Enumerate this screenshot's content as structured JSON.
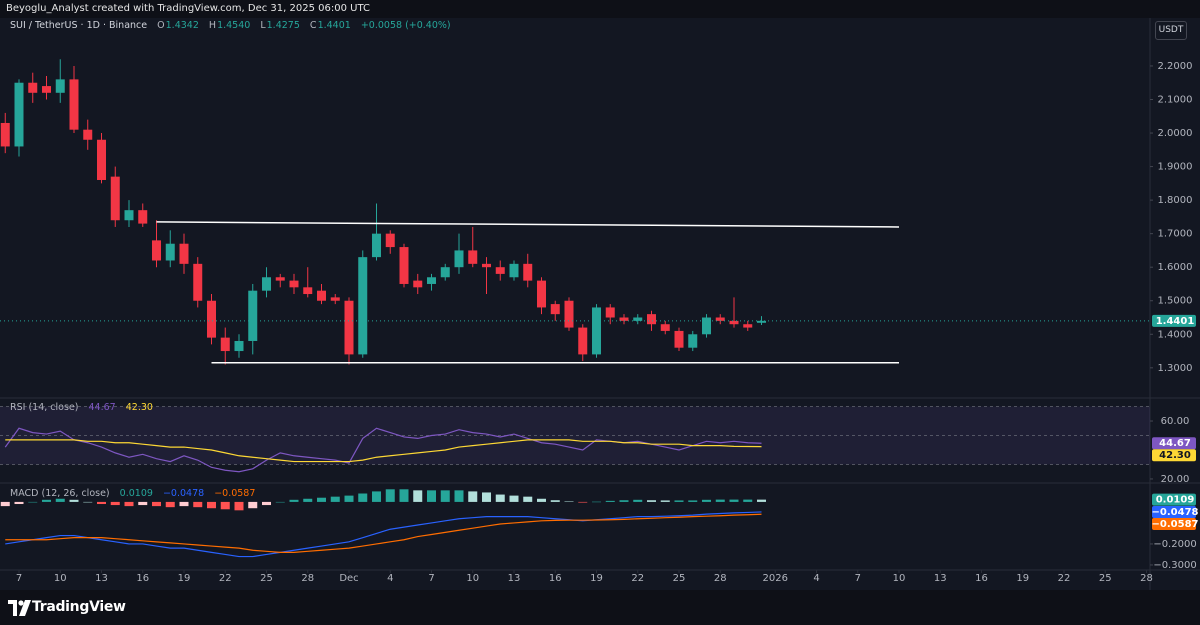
{
  "header": {
    "credit": "Beyoglu_Analyst created with TradingView.com, Dec 31, 2025 06:00 UTC",
    "symbol": "SUI / TetherUS · 1D · Binance",
    "ohlc_prefixes": [
      "O",
      "H",
      "L",
      "C"
    ],
    "change": "+0.0058 (+0.40%)",
    "currency": "USDT"
  },
  "brand": "TradingView",
  "chart_data": [
    {
      "type": "candlestick",
      "x": [
        "2025-11-06",
        "2025-11-07",
        "2025-11-08",
        "2025-11-09",
        "2025-11-10",
        "2025-11-11",
        "2025-11-12",
        "2025-11-13",
        "2025-11-14",
        "2025-11-15",
        "2025-11-16",
        "2025-11-17",
        "2025-11-18",
        "2025-11-19",
        "2025-11-20",
        "2025-11-21",
        "2025-11-22",
        "2025-11-23",
        "2025-11-24",
        "2025-11-25",
        "2025-11-26",
        "2025-11-27",
        "2025-11-28",
        "2025-11-29",
        "2025-11-30",
        "2025-12-01",
        "2025-12-02",
        "2025-12-03",
        "2025-12-04",
        "2025-12-05",
        "2025-12-06",
        "2025-12-07",
        "2025-12-08",
        "2025-12-09",
        "2025-12-10",
        "2025-12-11",
        "2025-12-12",
        "2025-12-13",
        "2025-12-14",
        "2025-12-15",
        "2025-12-16",
        "2025-12-17",
        "2025-12-18",
        "2025-12-19",
        "2025-12-20",
        "2025-12-21",
        "2025-12-22",
        "2025-12-23",
        "2025-12-24",
        "2025-12-25",
        "2025-12-26",
        "2025-12-27",
        "2025-12-28",
        "2025-12-29",
        "2025-12-30",
        "2025-12-31"
      ],
      "open": [
        2.03,
        1.96,
        2.15,
        2.14,
        2.12,
        2.16,
        2.01,
        1.98,
        1.87,
        1.74,
        1.77,
        1.68,
        1.62,
        1.67,
        1.61,
        1.5,
        1.39,
        1.35,
        1.38,
        1.53,
        1.57,
        1.56,
        1.54,
        1.53,
        1.51,
        1.5,
        1.34,
        1.63,
        1.7,
        1.66,
        1.56,
        1.55,
        1.57,
        1.6,
        1.65,
        1.61,
        1.6,
        1.57,
        1.61,
        1.56,
        1.49,
        1.5,
        1.42,
        1.34,
        1.48,
        1.45,
        1.44,
        1.46,
        1.43,
        1.41,
        1.36,
        1.4,
        1.45,
        1.44,
        1.43,
        1.4342
      ],
      "high": [
        2.06,
        2.16,
        2.18,
        2.17,
        2.22,
        2.2,
        2.04,
        2.0,
        1.9,
        1.8,
        1.79,
        1.74,
        1.71,
        1.7,
        1.63,
        1.52,
        1.42,
        1.4,
        1.55,
        1.6,
        1.58,
        1.58,
        1.6,
        1.55,
        1.52,
        1.51,
        1.65,
        1.79,
        1.71,
        1.67,
        1.58,
        1.58,
        1.61,
        1.7,
        1.72,
        1.63,
        1.62,
        1.62,
        1.64,
        1.57,
        1.5,
        1.51,
        1.43,
        1.49,
        1.49,
        1.46,
        1.46,
        1.47,
        1.44,
        1.42,
        1.41,
        1.46,
        1.46,
        1.51,
        1.44,
        1.454
      ],
      "low": [
        1.94,
        1.93,
        2.09,
        2.1,
        2.09,
        2.0,
        1.95,
        1.85,
        1.72,
        1.72,
        1.72,
        1.6,
        1.6,
        1.58,
        1.48,
        1.37,
        1.31,
        1.33,
        1.34,
        1.51,
        1.54,
        1.52,
        1.51,
        1.49,
        1.49,
        1.31,
        1.33,
        1.62,
        1.64,
        1.54,
        1.52,
        1.53,
        1.56,
        1.58,
        1.6,
        1.52,
        1.56,
        1.56,
        1.54,
        1.46,
        1.44,
        1.41,
        1.32,
        1.33,
        1.43,
        1.43,
        1.43,
        1.41,
        1.4,
        1.35,
        1.35,
        1.39,
        1.43,
        1.42,
        1.41,
        1.4275
      ],
      "close": [
        1.96,
        2.15,
        2.12,
        2.12,
        2.16,
        2.01,
        1.98,
        1.86,
        1.74,
        1.77,
        1.73,
        1.62,
        1.67,
        1.61,
        1.5,
        1.39,
        1.35,
        1.38,
        1.53,
        1.57,
        1.56,
        1.54,
        1.52,
        1.5,
        1.5,
        1.34,
        1.63,
        1.7,
        1.66,
        1.55,
        1.54,
        1.57,
        1.6,
        1.65,
        1.61,
        1.6,
        1.58,
        1.61,
        1.56,
        1.48,
        1.46,
        1.42,
        1.34,
        1.48,
        1.45,
        1.44,
        1.45,
        1.43,
        1.41,
        1.36,
        1.4,
        1.45,
        1.44,
        1.43,
        1.42,
        1.4401
      ],
      "ohlc_labels": [
        "1.4342",
        "1.4540",
        "1.4275",
        "1.4401"
      ],
      "up_color": "#26a69a",
      "down_color": "#f23645",
      "xlim": [
        "2025-11-05",
        "2026-01-29"
      ],
      "xticks": [
        {
          "value": "2025-11-07",
          "label": "7"
        },
        {
          "value": "2025-11-10",
          "label": "10"
        },
        {
          "value": "2025-11-13",
          "label": "13"
        },
        {
          "value": "2025-11-16",
          "label": "16"
        },
        {
          "value": "2025-11-19",
          "label": "19"
        },
        {
          "value": "2025-11-22",
          "label": "22"
        },
        {
          "value": "2025-11-25",
          "label": "25"
        },
        {
          "value": "2025-11-28",
          "label": "28"
        },
        {
          "value": "2025-12-01",
          "label": "Dec"
        },
        {
          "value": "2025-12-04",
          "label": "4"
        },
        {
          "value": "2025-12-07",
          "label": "7"
        },
        {
          "value": "2025-12-10",
          "label": "10"
        },
        {
          "value": "2025-12-13",
          "label": "13"
        },
        {
          "value": "2025-12-16",
          "label": "16"
        },
        {
          "value": "2025-12-19",
          "label": "19"
        },
        {
          "value": "2025-12-22",
          "label": "22"
        },
        {
          "value": "2025-12-25",
          "label": "25"
        },
        {
          "value": "2025-12-28",
          "label": "28"
        },
        {
          "value": "2026-01-01",
          "label": "2026"
        },
        {
          "value": "2026-01-04",
          "label": "4"
        },
        {
          "value": "2026-01-07",
          "label": "7"
        },
        {
          "value": "2026-01-10",
          "label": "10"
        },
        {
          "value": "2026-01-13",
          "label": "13"
        },
        {
          "value": "2026-01-16",
          "label": "16"
        },
        {
          "value": "2026-01-19",
          "label": "19"
        },
        {
          "value": "2026-01-22",
          "label": "22"
        },
        {
          "value": "2026-01-25",
          "label": "25"
        },
        {
          "value": "2026-01-28",
          "label": "28"
        }
      ],
      "ylim": [
        1.21,
        2.343
      ],
      "yticks": [
        {
          "value": 1.3,
          "label": "1.3000"
        },
        {
          "value": 1.4,
          "label": "1.4000"
        },
        {
          "value": 1.5,
          "label": "1.5000"
        },
        {
          "value": 1.6,
          "label": "1.6000"
        },
        {
          "value": 1.7,
          "label": "1.7000"
        },
        {
          "value": 1.8,
          "label": "1.8000"
        },
        {
          "value": 1.9,
          "label": "1.9000"
        },
        {
          "value": 2.0,
          "label": "2.0000"
        },
        {
          "value": 2.1,
          "label": "2.1000"
        },
        {
          "value": 2.2,
          "label": "2.2000"
        }
      ],
      "lines": [
        {
          "color": "#ffffff",
          "x": [
            "2025-11-17",
            "2026-01-10"
          ],
          "y": [
            1.735,
            1.72
          ]
        },
        {
          "color": "#ffffff",
          "x": [
            "2025-11-21",
            "2026-01-10"
          ],
          "y": [
            1.315,
            1.315
          ]
        }
      ]
    },
    {
      "type": "line",
      "title": "RSI (14, close)",
      "ylim": [
        17.2,
        75.9
      ],
      "yticks": [
        {
          "value": 60,
          "label": "60.00"
        },
        {
          "value": 20,
          "label": "20.00"
        }
      ],
      "bands": [
        70,
        50,
        30
      ],
      "band_color": "#7e57c2",
      "series": [
        {
          "color": "#7e57c2",
          "values": [
            42,
            55,
            52,
            51,
            53,
            47,
            45,
            42,
            38,
            35,
            37,
            34,
            32,
            36,
            33,
            28,
            26,
            25,
            27,
            33,
            38,
            36,
            35,
            34,
            33,
            31,
            48,
            55,
            52,
            49,
            48,
            50,
            51,
            54,
            52,
            51,
            49,
            51,
            48,
            45,
            44,
            42,
            40,
            47,
            46,
            45,
            46,
            44,
            42,
            40,
            43,
            46,
            45,
            46,
            45,
            44.67
          ]
        },
        {
          "color": "#fdd835",
          "last_label": "42.30",
          "values": [
            47,
            47,
            47,
            47,
            47,
            47,
            46,
            46,
            45,
            45,
            44,
            43,
            42,
            42,
            41,
            40,
            38,
            36,
            35,
            34,
            33,
            32,
            32,
            32,
            32,
            32,
            33,
            35,
            36,
            37,
            38,
            39,
            40,
            42,
            43,
            44,
            45,
            46,
            47,
            47,
            47,
            47,
            46,
            46,
            46,
            45,
            45,
            44,
            44,
            44,
            43,
            43,
            43,
            42.5,
            42.4,
            42.3
          ]
        }
      ]
    },
    {
      "type": "macd",
      "title": "MACD (12, 26, close)",
      "ylim": [
        -0.324,
        0.09
      ],
      "yticks": [
        {
          "value": -0.2,
          "label": "−0.2000"
        },
        {
          "value": -0.3,
          "label": "−0.3000"
        }
      ],
      "histogram": {
        "colors": [
          "#26a69a",
          "#b2dfdb",
          "#ff5252",
          "#ffcdd2"
        ],
        "values": [
          -0.02,
          -0.01,
          0.0,
          0.01,
          0.015,
          0.01,
          0.0,
          -0.01,
          -0.015,
          -0.02,
          -0.015,
          -0.02,
          -0.025,
          -0.02,
          -0.025,
          -0.03,
          -0.035,
          -0.04,
          -0.03,
          -0.015,
          0.0,
          0.01,
          0.015,
          0.02,
          0.025,
          0.03,
          0.04,
          0.05,
          0.06,
          0.06,
          0.055,
          0.055,
          0.055,
          0.055,
          0.05,
          0.045,
          0.035,
          0.03,
          0.025,
          0.015,
          0.008,
          0.002,
          -0.003,
          0.001,
          0.005,
          0.008,
          0.01,
          0.008,
          0.007,
          0.007,
          0.007,
          0.01,
          0.011,
          0.011,
          0.011,
          0.0109
        ]
      },
      "series": [
        {
          "color": "#2962ff",
          "last_label": "−0.0478",
          "values": [
            -0.2,
            -0.19,
            -0.18,
            -0.17,
            -0.16,
            -0.16,
            -0.17,
            -0.18,
            -0.19,
            -0.2,
            -0.2,
            -0.21,
            -0.22,
            -0.22,
            -0.23,
            -0.24,
            -0.25,
            -0.26,
            -0.26,
            -0.25,
            -0.24,
            -0.23,
            -0.22,
            -0.21,
            -0.2,
            -0.19,
            -0.17,
            -0.15,
            -0.13,
            -0.12,
            -0.11,
            -0.1,
            -0.09,
            -0.08,
            -0.075,
            -0.07,
            -0.07,
            -0.07,
            -0.07,
            -0.075,
            -0.08,
            -0.085,
            -0.09,
            -0.085,
            -0.08,
            -0.075,
            -0.07,
            -0.07,
            -0.068,
            -0.066,
            -0.063,
            -0.058,
            -0.055,
            -0.052,
            -0.05,
            -0.0478
          ]
        },
        {
          "color": "#ff6d00",
          "last_label": "−0.0587",
          "values": [
            -0.18,
            -0.18,
            -0.18,
            -0.18,
            -0.175,
            -0.17,
            -0.17,
            -0.17,
            -0.175,
            -0.18,
            -0.185,
            -0.19,
            -0.195,
            -0.2,
            -0.205,
            -0.21,
            -0.215,
            -0.22,
            -0.23,
            -0.235,
            -0.24,
            -0.24,
            -0.235,
            -0.23,
            -0.225,
            -0.22,
            -0.21,
            -0.2,
            -0.19,
            -0.18,
            -0.165,
            -0.155,
            -0.145,
            -0.135,
            -0.125,
            -0.115,
            -0.105,
            -0.1,
            -0.095,
            -0.09,
            -0.088,
            -0.087,
            -0.087,
            -0.086,
            -0.085,
            -0.083,
            -0.08,
            -0.078,
            -0.075,
            -0.073,
            -0.07,
            -0.068,
            -0.066,
            -0.063,
            -0.061,
            -0.0587
          ]
        }
      ]
    }
  ]
}
